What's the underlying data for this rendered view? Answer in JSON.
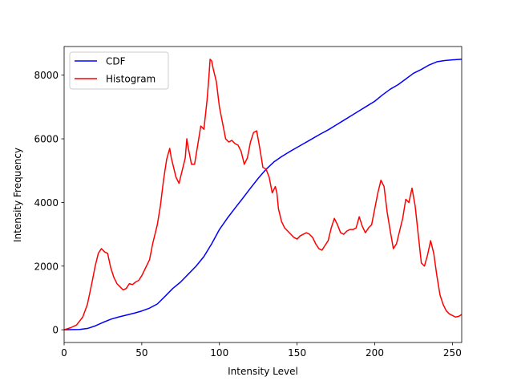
{
  "chart_data": {
    "type": "line",
    "title": "",
    "xlabel": "Intensity Level",
    "ylabel": "Intensity Frequency",
    "xlim": [
      0,
      256
    ],
    "ylim": [
      -400,
      8900
    ],
    "xticks": [
      0,
      50,
      100,
      150,
      200,
      250
    ],
    "yticks": [
      0,
      2000,
      4000,
      6000,
      8000
    ],
    "grid": false,
    "legend": {
      "position": "top-left"
    },
    "series": [
      {
        "name": "CDF",
        "color": "#0000ff",
        "points": [
          [
            0,
            0
          ],
          [
            10,
            10
          ],
          [
            15,
            40
          ],
          [
            20,
            120
          ],
          [
            25,
            230
          ],
          [
            30,
            330
          ],
          [
            35,
            400
          ],
          [
            40,
            460
          ],
          [
            45,
            520
          ],
          [
            50,
            590
          ],
          [
            55,
            680
          ],
          [
            60,
            810
          ],
          [
            65,
            1050
          ],
          [
            70,
            1300
          ],
          [
            75,
            1500
          ],
          [
            80,
            1750
          ],
          [
            85,
            2000
          ],
          [
            90,
            2300
          ],
          [
            95,
            2700
          ],
          [
            100,
            3150
          ],
          [
            105,
            3500
          ],
          [
            110,
            3820
          ],
          [
            115,
            4130
          ],
          [
            120,
            4450
          ],
          [
            125,
            4760
          ],
          [
            130,
            5040
          ],
          [
            135,
            5270
          ],
          [
            140,
            5440
          ],
          [
            145,
            5590
          ],
          [
            150,
            5730
          ],
          [
            155,
            5870
          ],
          [
            160,
            6010
          ],
          [
            165,
            6150
          ],
          [
            170,
            6280
          ],
          [
            175,
            6430
          ],
          [
            180,
            6580
          ],
          [
            185,
            6730
          ],
          [
            190,
            6880
          ],
          [
            195,
            7030
          ],
          [
            200,
            7180
          ],
          [
            205,
            7380
          ],
          [
            210,
            7560
          ],
          [
            215,
            7700
          ],
          [
            220,
            7880
          ],
          [
            225,
            8060
          ],
          [
            230,
            8180
          ],
          [
            235,
            8320
          ],
          [
            240,
            8420
          ],
          [
            245,
            8460
          ],
          [
            250,
            8480
          ],
          [
            256,
            8500
          ]
        ]
      },
      {
        "name": "Histogram",
        "color": "#ff0000",
        "points": [
          [
            0,
            0
          ],
          [
            4,
            60
          ],
          [
            8,
            150
          ],
          [
            12,
            400
          ],
          [
            15,
            800
          ],
          [
            18,
            1500
          ],
          [
            20,
            2000
          ],
          [
            22,
            2400
          ],
          [
            24,
            2550
          ],
          [
            26,
            2450
          ],
          [
            28,
            2400
          ],
          [
            30,
            1950
          ],
          [
            32,
            1650
          ],
          [
            34,
            1450
          ],
          [
            36,
            1350
          ],
          [
            38,
            1250
          ],
          [
            40,
            1300
          ],
          [
            42,
            1450
          ],
          [
            44,
            1420
          ],
          [
            46,
            1500
          ],
          [
            48,
            1550
          ],
          [
            50,
            1700
          ],
          [
            52,
            1900
          ],
          [
            55,
            2200
          ],
          [
            57,
            2700
          ],
          [
            60,
            3300
          ],
          [
            62,
            3900
          ],
          [
            64,
            4700
          ],
          [
            66,
            5350
          ],
          [
            68,
            5700
          ],
          [
            69,
            5400
          ],
          [
            70,
            5200
          ],
          [
            72,
            4800
          ],
          [
            74,
            4600
          ],
          [
            76,
            5000
          ],
          [
            78,
            5400
          ],
          [
            79,
            6000
          ],
          [
            80,
            5700
          ],
          [
            82,
            5200
          ],
          [
            84,
            5200
          ],
          [
            86,
            5800
          ],
          [
            88,
            6400
          ],
          [
            90,
            6300
          ],
          [
            92,
            7200
          ],
          [
            93,
            7800
          ],
          [
            94,
            8500
          ],
          [
            95,
            8450
          ],
          [
            96,
            8200
          ],
          [
            98,
            7800
          ],
          [
            100,
            7000
          ],
          [
            102,
            6500
          ],
          [
            104,
            6000
          ],
          [
            106,
            5900
          ],
          [
            108,
            5950
          ],
          [
            110,
            5850
          ],
          [
            112,
            5800
          ],
          [
            114,
            5600
          ],
          [
            116,
            5200
          ],
          [
            118,
            5400
          ],
          [
            120,
            5900
          ],
          [
            122,
            6200
          ],
          [
            124,
            6250
          ],
          [
            126,
            5700
          ],
          [
            128,
            5100
          ],
          [
            130,
            5050
          ],
          [
            132,
            4800
          ],
          [
            134,
            4300
          ],
          [
            136,
            4500
          ],
          [
            137,
            4300
          ],
          [
            138,
            3800
          ],
          [
            140,
            3400
          ],
          [
            142,
            3200
          ],
          [
            144,
            3100
          ],
          [
            146,
            3000
          ],
          [
            148,
            2900
          ],
          [
            150,
            2850
          ],
          [
            152,
            2950
          ],
          [
            154,
            3000
          ],
          [
            156,
            3050
          ],
          [
            158,
            3000
          ],
          [
            160,
            2900
          ],
          [
            162,
            2700
          ],
          [
            164,
            2550
          ],
          [
            166,
            2500
          ],
          [
            168,
            2650
          ],
          [
            170,
            2800
          ],
          [
            172,
            3200
          ],
          [
            174,
            3500
          ],
          [
            176,
            3300
          ],
          [
            178,
            3050
          ],
          [
            180,
            3000
          ],
          [
            182,
            3100
          ],
          [
            184,
            3150
          ],
          [
            186,
            3150
          ],
          [
            188,
            3200
          ],
          [
            190,
            3550
          ],
          [
            192,
            3250
          ],
          [
            194,
            3050
          ],
          [
            196,
            3200
          ],
          [
            198,
            3300
          ],
          [
            200,
            3800
          ],
          [
            202,
            4300
          ],
          [
            204,
            4700
          ],
          [
            206,
            4500
          ],
          [
            208,
            3700
          ],
          [
            210,
            3100
          ],
          [
            212,
            2550
          ],
          [
            214,
            2700
          ],
          [
            216,
            3100
          ],
          [
            218,
            3500
          ],
          [
            220,
            4100
          ],
          [
            222,
            4000
          ],
          [
            224,
            4450
          ],
          [
            226,
            3900
          ],
          [
            228,
            3000
          ],
          [
            230,
            2100
          ],
          [
            232,
            2000
          ],
          [
            234,
            2350
          ],
          [
            236,
            2800
          ],
          [
            238,
            2400
          ],
          [
            240,
            1700
          ],
          [
            242,
            1100
          ],
          [
            244,
            800
          ],
          [
            246,
            600
          ],
          [
            248,
            500
          ],
          [
            250,
            450
          ],
          [
            252,
            400
          ],
          [
            254,
            420
          ],
          [
            256,
            480
          ]
        ]
      }
    ]
  }
}
